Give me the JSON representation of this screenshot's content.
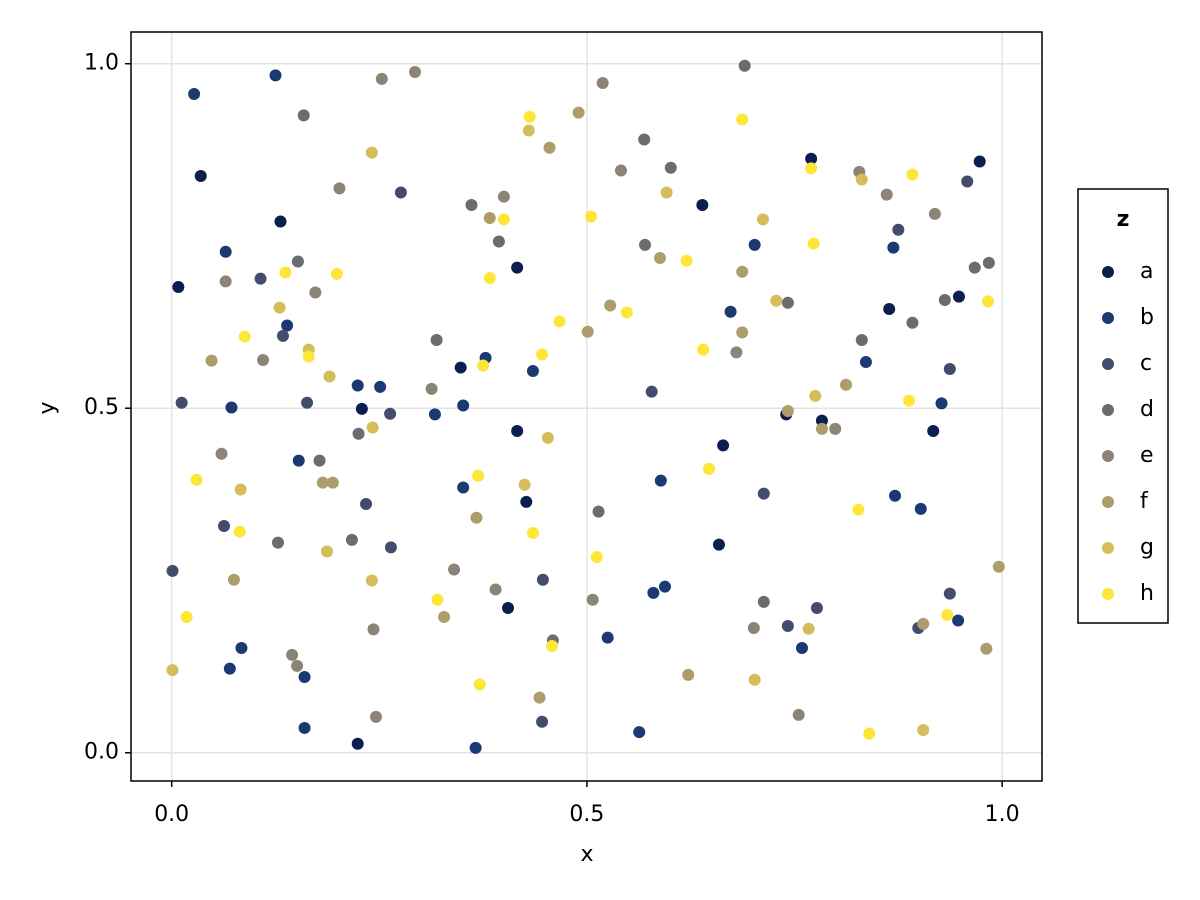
{
  "chart_data": {
    "type": "scatter",
    "x_label": "x",
    "y_label": "y",
    "legend_title": "z",
    "legend": "right",
    "grid": true,
    "xlim": [
      -0.049,
      1.048
    ],
    "ylim": [
      -0.041,
      1.046
    ],
    "xticks": [
      {
        "value": 0,
        "label": "0.0"
      },
      0.5,
      {
        "value": 1,
        "label": "1.0"
      }
    ],
    "yticks": [
      {
        "value": 0,
        "label": "0.0"
      },
      0.5,
      {
        "value": 1,
        "label": "1.0"
      }
    ],
    "series": [
      {
        "name": "a",
        "color": "#0a1f4e",
        "x": [
          0.008,
          0.035,
          0.131,
          0.229,
          0.224,
          0.348,
          0.416,
          0.416,
          0.405,
          0.427,
          0.639,
          0.664,
          0.659,
          0.74,
          0.77,
          0.783,
          0.864,
          0.917,
          0.948,
          0.973
        ],
        "values": [
          0.676,
          0.837,
          0.771,
          0.499,
          0.013,
          0.559,
          0.704,
          0.467,
          0.21,
          0.364,
          0.795,
          0.446,
          0.302,
          0.491,
          0.862,
          0.482,
          0.644,
          0.467,
          0.662,
          0.858
        ]
      },
      {
        "name": "b",
        "color": "#1b3a72",
        "x": [
          0.027,
          0.065,
          0.072,
          0.07,
          0.084,
          0.125,
          0.139,
          0.153,
          0.16,
          0.16,
          0.224,
          0.251,
          0.317,
          0.351,
          0.351,
          0.378,
          0.435,
          0.525,
          0.58,
          0.594,
          0.589,
          0.673,
          0.702,
          0.759,
          0.836,
          0.869,
          0.871,
          0.902,
          0.927,
          0.947,
          0.563,
          0.366
        ],
        "values": [
          0.956,
          0.727,
          0.501,
          0.122,
          0.152,
          0.983,
          0.62,
          0.424,
          0.11,
          0.036,
          0.533,
          0.531,
          0.491,
          0.504,
          0.385,
          0.573,
          0.554,
          0.167,
          0.232,
          0.241,
          0.395,
          0.64,
          0.737,
          0.152,
          0.567,
          0.733,
          0.373,
          0.354,
          0.507,
          0.192,
          0.03,
          0.007
        ]
      },
      {
        "name": "c",
        "color": "#434d6b",
        "x": [
          0.012,
          0.063,
          0.107,
          0.134,
          0.163,
          0.234,
          0.263,
          0.264,
          0.276,
          0.447,
          0.446,
          0.578,
          0.713,
          0.742,
          0.777,
          0.875,
          0.899,
          0.937,
          0.937,
          0.958,
          0.001
        ],
        "values": [
          0.508,
          0.329,
          0.688,
          0.605,
          0.508,
          0.361,
          0.492,
          0.298,
          0.813,
          0.251,
          0.045,
          0.524,
          0.376,
          0.184,
          0.21,
          0.759,
          0.181,
          0.231,
          0.557,
          0.829,
          0.264
        ]
      },
      {
        "name": "d",
        "color": "#6b6b70",
        "x": [
          0.128,
          0.159,
          0.152,
          0.178,
          0.225,
          0.217,
          0.319,
          0.361,
          0.394,
          0.459,
          0.514,
          0.569,
          0.57,
          0.601,
          0.713,
          0.69,
          0.742,
          0.831,
          0.892,
          0.967,
          0.984,
          0.931
        ],
        "values": [
          0.305,
          0.925,
          0.713,
          0.424,
          0.463,
          0.309,
          0.599,
          0.795,
          0.742,
          0.163,
          0.35,
          0.89,
          0.737,
          0.849,
          0.219,
          0.997,
          0.653,
          0.599,
          0.624,
          0.704,
          0.711,
          0.657
        ]
      },
      {
        "name": "e",
        "color": "#8c8577",
        "x": [
          0.065,
          0.06,
          0.173,
          0.202,
          0.243,
          0.246,
          0.253,
          0.293,
          0.313,
          0.34,
          0.39,
          0.519,
          0.541,
          0.701,
          0.68,
          0.799,
          0.755,
          0.828,
          0.861,
          0.919,
          0.11,
          0.145,
          0.151,
          0.4,
          0.507
        ],
        "values": [
          0.684,
          0.434,
          0.668,
          0.819,
          0.179,
          0.052,
          0.978,
          0.988,
          0.528,
          0.266,
          0.237,
          0.972,
          0.845,
          0.181,
          0.581,
          0.47,
          0.055,
          0.843,
          0.81,
          0.782,
          0.57,
          0.142,
          0.126,
          0.807,
          0.222
        ]
      },
      {
        "name": "f",
        "color": "#ab9d6c",
        "x": [
          0.048,
          0.075,
          0.182,
          0.194,
          0.328,
          0.367,
          0.383,
          0.443,
          0.49,
          0.528,
          0.687,
          0.687,
          0.742,
          0.783,
          0.812,
          0.981,
          0.996,
          0.905,
          0.622,
          0.455,
          0.588,
          0.501
        ],
        "values": [
          0.569,
          0.251,
          0.392,
          0.392,
          0.197,
          0.341,
          0.776,
          0.08,
          0.929,
          0.649,
          0.61,
          0.698,
          0.496,
          0.47,
          0.534,
          0.151,
          0.27,
          0.187,
          0.113,
          0.878,
          0.718,
          0.611
        ]
      },
      {
        "name": "g",
        "color": "#d4bd5a",
        "x": [
          0.001,
          0.083,
          0.13,
          0.165,
          0.187,
          0.19,
          0.241,
          0.242,
          0.241,
          0.43,
          0.425,
          0.453,
          0.596,
          0.702,
          0.712,
          0.728,
          0.767,
          0.775,
          0.831,
          0.905
        ],
        "values": [
          0.12,
          0.382,
          0.646,
          0.585,
          0.292,
          0.546,
          0.871,
          0.472,
          0.25,
          0.903,
          0.389,
          0.457,
          0.813,
          0.106,
          0.774,
          0.656,
          0.18,
          0.518,
          0.832,
          0.033
        ]
      },
      {
        "name": "h",
        "color": "#fde637",
        "x": [
          0.018,
          0.03,
          0.088,
          0.082,
          0.137,
          0.165,
          0.199,
          0.32,
          0.369,
          0.371,
          0.375,
          0.383,
          0.4,
          0.431,
          0.435,
          0.446,
          0.458,
          0.467,
          0.505,
          0.512,
          0.548,
          0.62,
          0.64,
          0.647,
          0.687,
          0.77,
          0.773,
          0.827,
          0.84,
          0.892,
          0.888,
          0.934,
          0.983
        ],
        "values": [
          0.197,
          0.396,
          0.604,
          0.321,
          0.697,
          0.575,
          0.695,
          0.222,
          0.402,
          0.099,
          0.562,
          0.689,
          0.774,
          0.923,
          0.319,
          0.578,
          0.155,
          0.626,
          0.778,
          0.284,
          0.639,
          0.714,
          0.585,
          0.412,
          0.919,
          0.848,
          0.739,
          0.353,
          0.028,
          0.839,
          0.511,
          0.2,
          0.655
        ]
      }
    ]
  }
}
